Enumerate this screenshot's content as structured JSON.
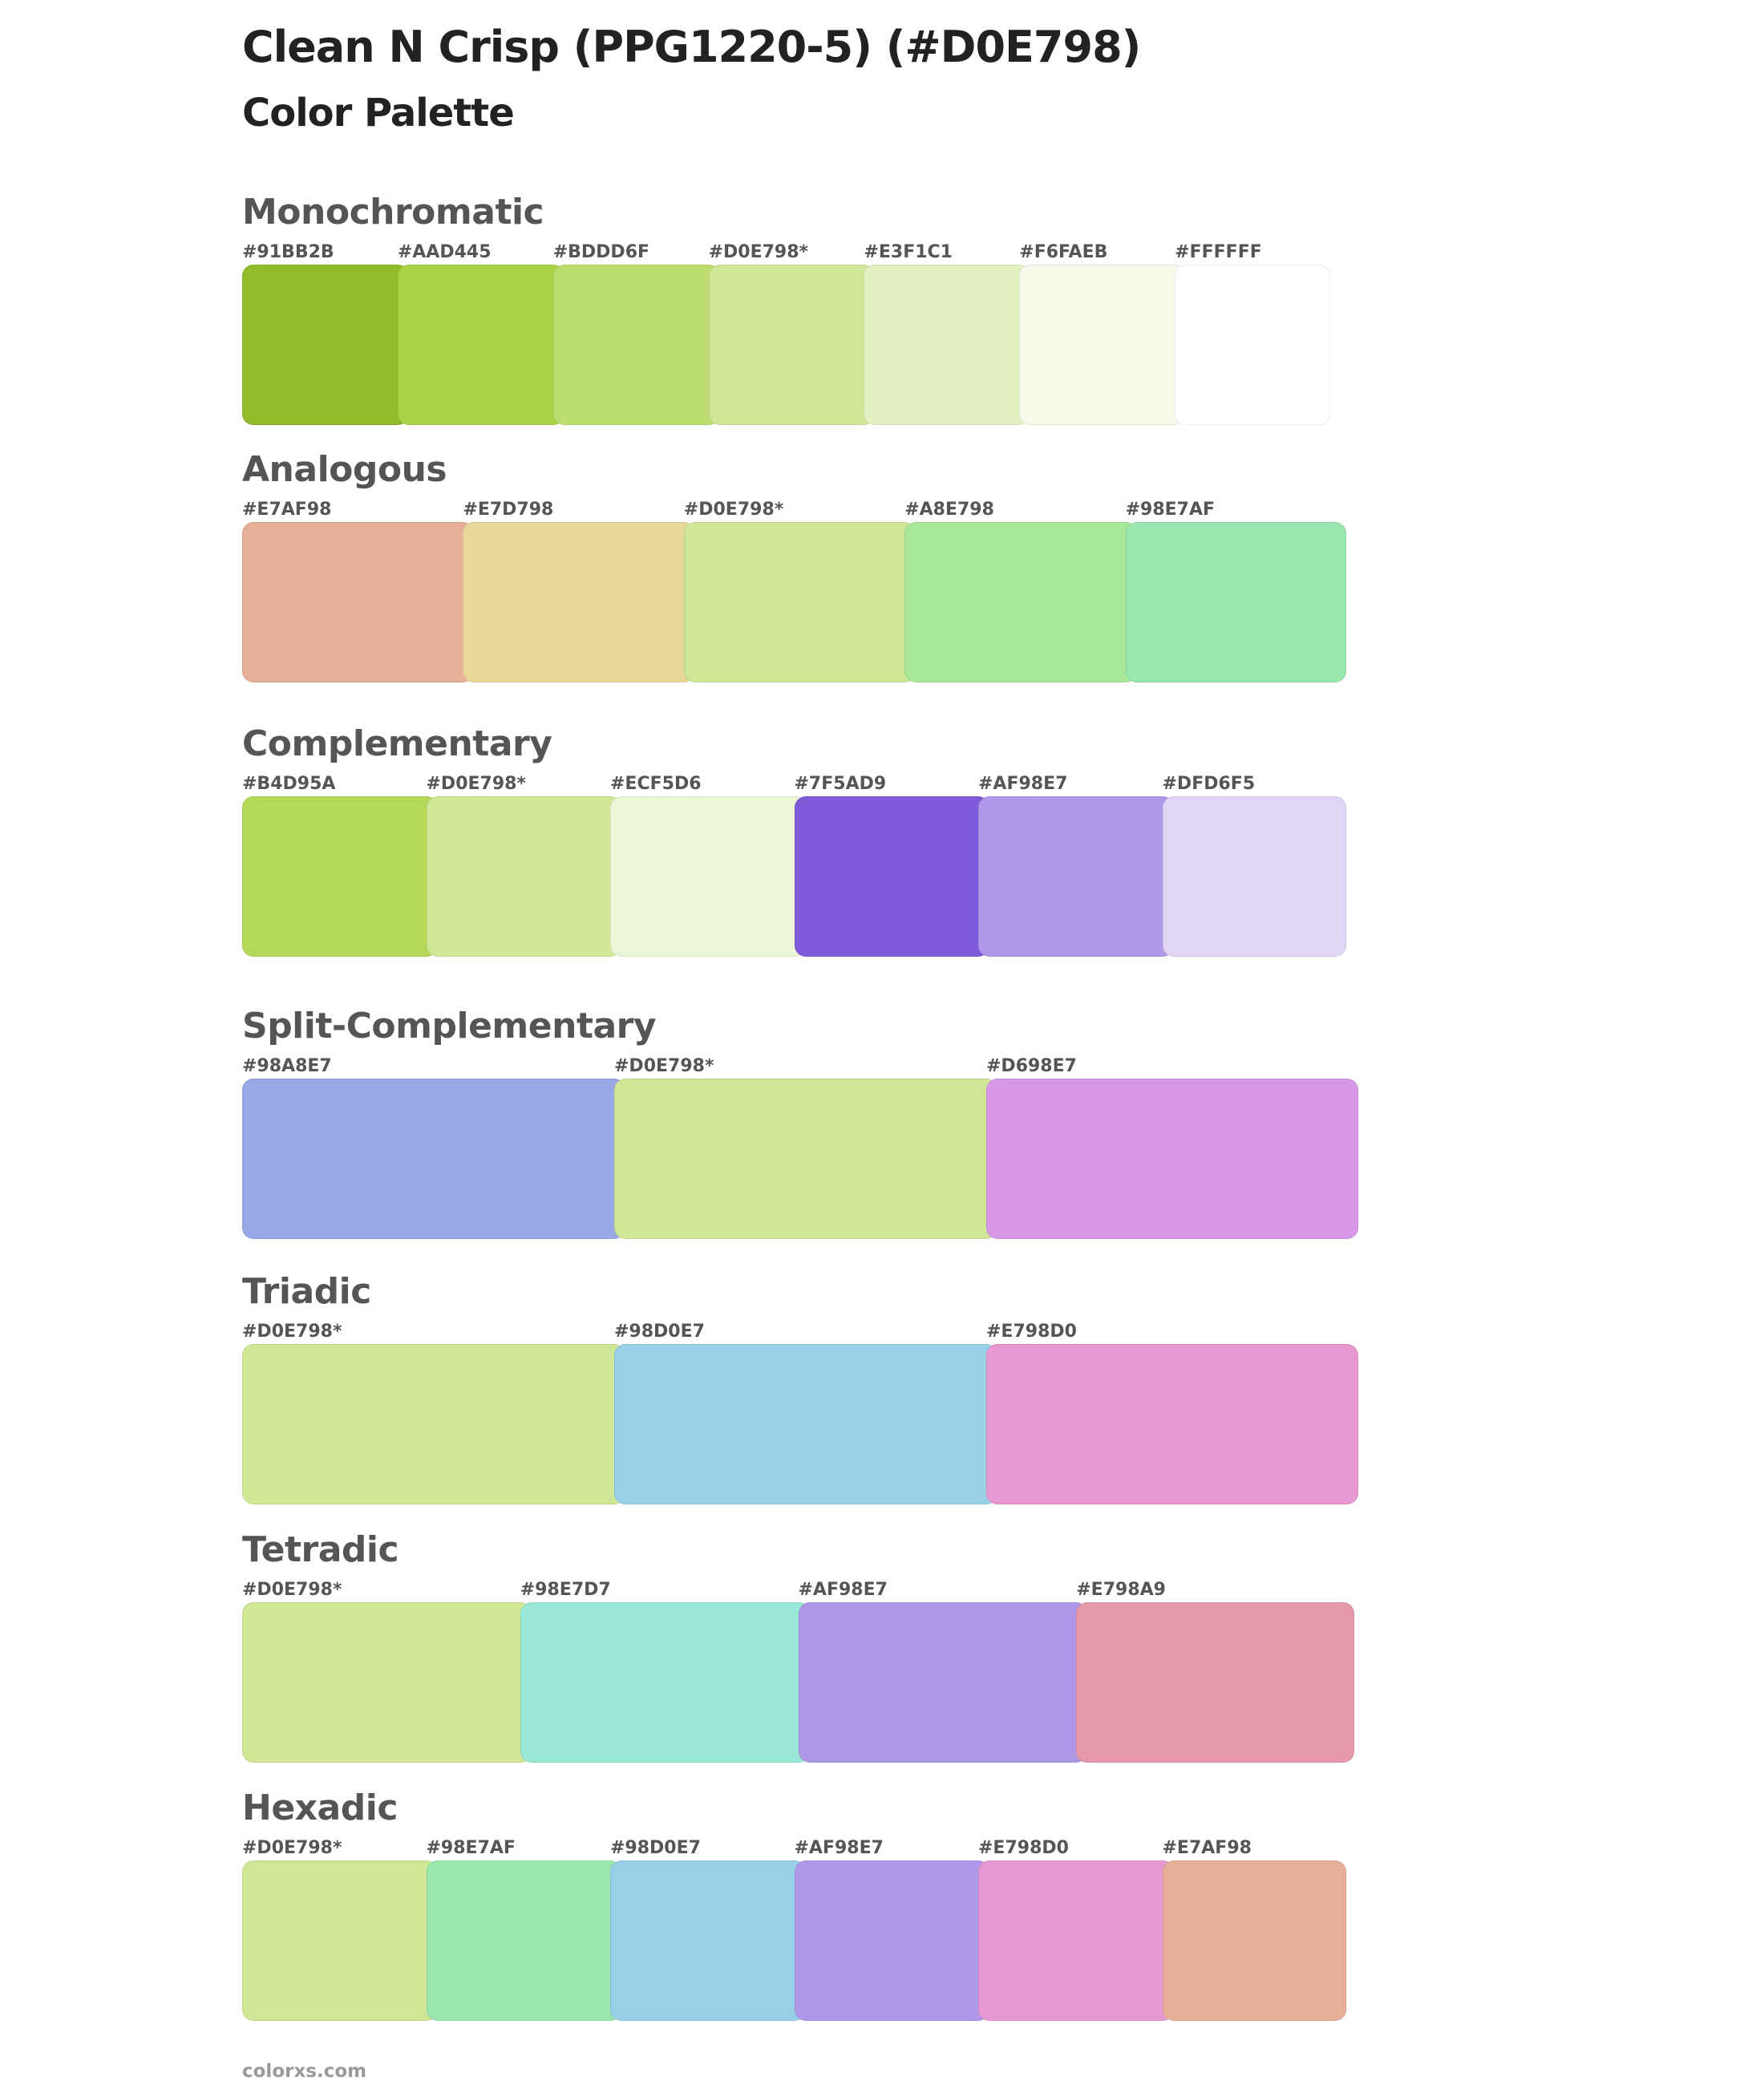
{
  "header": {
    "title": "Clean N Crisp (PPG1220-5) (#D0E798)",
    "subtitle": "Color Palette"
  },
  "sections": [
    {
      "name": "Monochromatic",
      "swatches": [
        {
          "label": "#91BB2B",
          "color": "#91BB2B"
        },
        {
          "label": "#AAD445",
          "color": "#AAD445"
        },
        {
          "label": "#BDDD6F",
          "color": "#BDDD6F"
        },
        {
          "label": "#D0E798*",
          "color": "#D0E798"
        },
        {
          "label": "#E3F1C1",
          "color": "#E3F1C1"
        },
        {
          "label": "#F6FAEB",
          "color": "#F6FAEB"
        },
        {
          "label": "#FFFFFF",
          "color": "#FFFFFF"
        }
      ]
    },
    {
      "name": "Analogous",
      "swatches": [
        {
          "label": "#E7AF98",
          "color": "#E7AF98"
        },
        {
          "label": "#E7D798",
          "color": "#E7D798"
        },
        {
          "label": "#D0E798*",
          "color": "#D0E798"
        },
        {
          "label": "#A8E798",
          "color": "#A8E798"
        },
        {
          "label": "#98E7AF",
          "color": "#98E7AF"
        }
      ]
    },
    {
      "name": "Complementary",
      "swatches": [
        {
          "label": "#B4D95A",
          "color": "#B4D95A"
        },
        {
          "label": "#D0E798*",
          "color": "#D0E798"
        },
        {
          "label": "#ECF5D6",
          "color": "#ECF5D6"
        },
        {
          "label": "#7F5AD9",
          "color": "#7F5AD9"
        },
        {
          "label": "#AF98E7",
          "color": "#AF98E7"
        },
        {
          "label": "#DFD6F5",
          "color": "#DFD6F5"
        }
      ]
    },
    {
      "name": "Split-Complementary",
      "swatches": [
        {
          "label": "#98A8E7",
          "color": "#98A8E7"
        },
        {
          "label": "#D0E798*",
          "color": "#D0E798"
        },
        {
          "label": "#D698E7",
          "color": "#D698E7"
        }
      ]
    },
    {
      "name": "Triadic",
      "swatches": [
        {
          "label": "#D0E798*",
          "color": "#D0E798"
        },
        {
          "label": "#98D0E7",
          "color": "#98D0E7"
        },
        {
          "label": "#E798D0",
          "color": "#E798D0"
        }
      ]
    },
    {
      "name": "Tetradic",
      "swatches": [
        {
          "label": "#D0E798*",
          "color": "#D0E798"
        },
        {
          "label": "#98E7D7",
          "color": "#98E7D7"
        },
        {
          "label": "#AF98E7",
          "color": "#AF98E7"
        },
        {
          "label": "#E798A9",
          "color": "#E798A9"
        }
      ]
    },
    {
      "name": "Hexadic",
      "swatches": [
        {
          "label": "#D0E798*",
          "color": "#D0E798"
        },
        {
          "label": "#98E7AF",
          "color": "#98E7AF"
        },
        {
          "label": "#98D0E7",
          "color": "#98D0E7"
        },
        {
          "label": "#AF98E7",
          "color": "#AF98E7"
        },
        {
          "label": "#E798D0",
          "color": "#E798D0"
        },
        {
          "label": "#E7AF98",
          "color": "#E7AF98"
        }
      ]
    }
  ],
  "footer": "colorxs.com"
}
